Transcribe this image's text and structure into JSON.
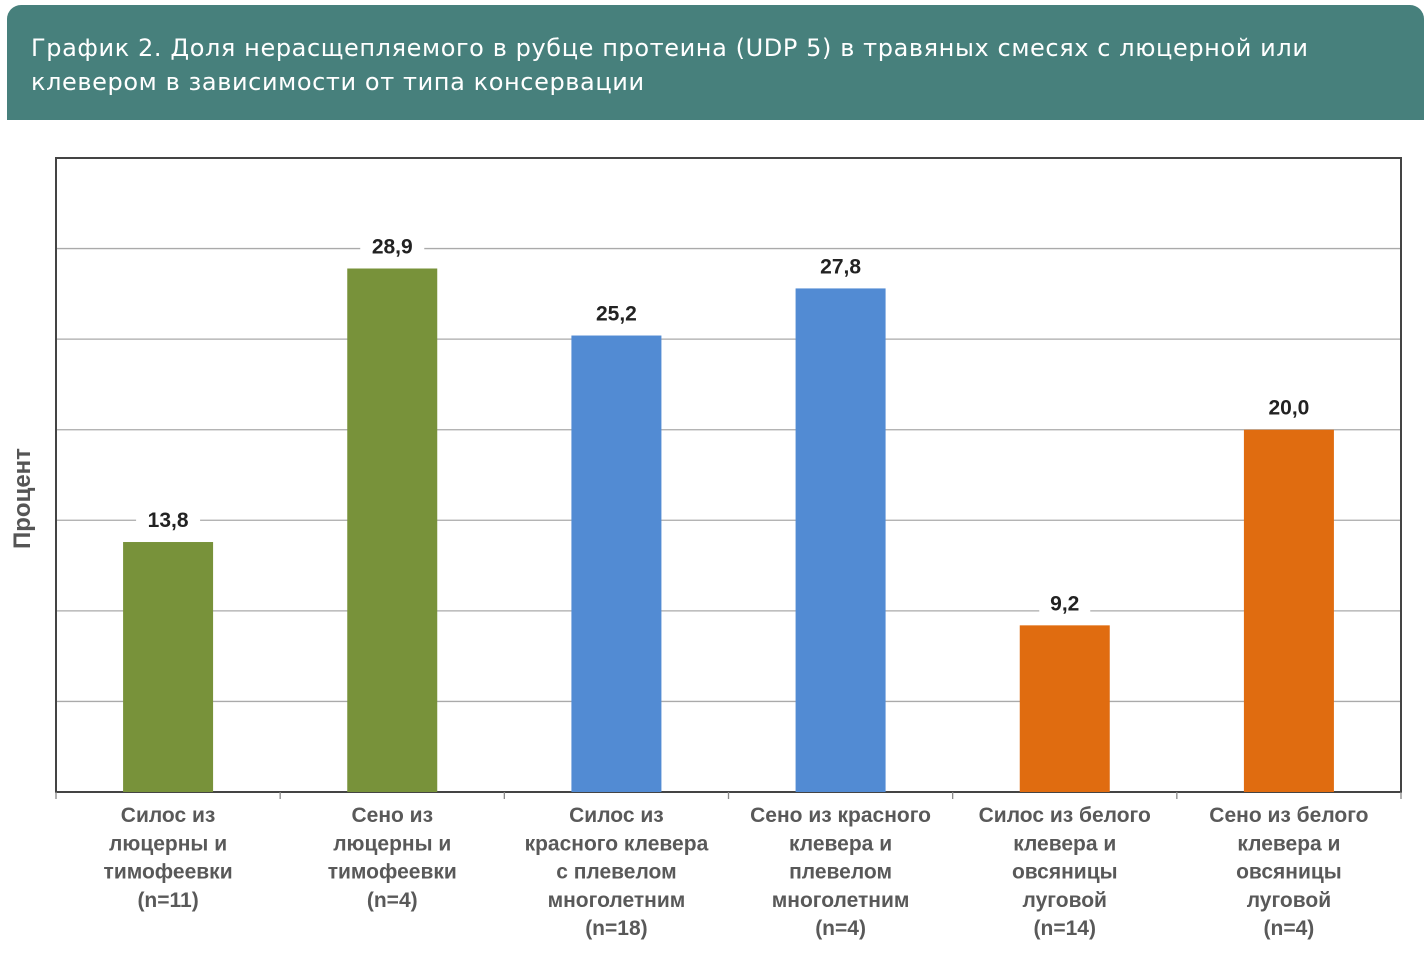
{
  "header": {
    "title": "График 2. Доля нерасщепляемого в рубце протеина (UDP 5) в травяных смесях с люцерной или клевером в зависимости от типа консервации"
  },
  "chart_data": {
    "type": "bar",
    "title": "График 2. Доля нерасщепляемого в рубце протеина (UDP 5) в травяных смесях с люцерной или клевером в зависимости от типа консервации",
    "xlabel": "",
    "ylabel": "Процент",
    "ylim": [
      0,
      35
    ],
    "grid": true,
    "gridlines": [
      5,
      10,
      15,
      20,
      25,
      30
    ],
    "categories": [
      [
        "Силос из",
        "люцерны и",
        "тимофеевки",
        "(n=11)"
      ],
      [
        "Сено из",
        "люцерны и",
        "тимофеевки",
        "(n=4)"
      ],
      [
        "Силос из",
        "красного клевера",
        "с плевелом",
        "многолетним",
        "(n=18)"
      ],
      [
        "Сено из красного",
        "клевера и",
        "плевелом",
        "многолетним",
        "(n=4)"
      ],
      [
        "Силос из белого",
        "клевера и",
        "овсяницы",
        "луговой",
        "(n=14)"
      ],
      [
        "Сено из белого",
        "клевера и",
        "овсяницы",
        "луговой",
        "(n=4)"
      ]
    ],
    "values": [
      13.8,
      28.9,
      25.2,
      27.8,
      9.2,
      20.0
    ],
    "value_labels": [
      "13,8",
      "28,9",
      "25,2",
      "27,8",
      "9,2",
      "20,0"
    ],
    "colors": [
      "#78923a",
      "#78923a",
      "#528bd3",
      "#528bd3",
      "#e06c10",
      "#e06c10"
    ]
  }
}
